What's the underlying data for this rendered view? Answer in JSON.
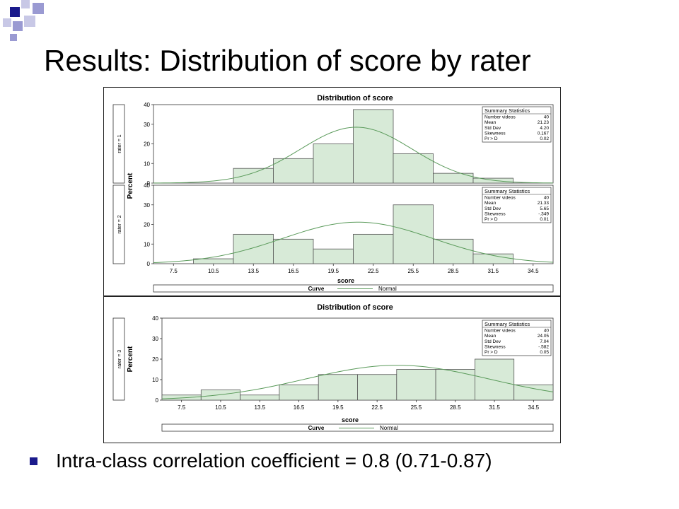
{
  "slide": {
    "title": "Results: Distribution of score by rater",
    "bullet": "Intra-class correlation coefficient = 0.8 (0.71-0.87)",
    "accent_colors": [
      "#1a1a8c",
      "#9a9ad2",
      "#c8c8e6"
    ]
  },
  "figures": [
    {
      "title": "Distribution of score",
      "ylabel": "Percent",
      "xlabel": "score",
      "legend": {
        "label": "Curve",
        "entry": "Normal"
      },
      "stats_header": "Summary Statistics",
      "xticks": [
        "7.5",
        "10.5",
        "13.5",
        "16.5",
        "19.5",
        "22.5",
        "25.5",
        "28.5",
        "31.5",
        "34.5"
      ],
      "yticks": [
        "0",
        "10",
        "20",
        "30",
        "40"
      ],
      "panels": [
        {
          "group_label": "rater = 1",
          "stats": [
            {
              "label": "Number videos",
              "value": "40"
            },
            {
              "label": "Mean",
              "value": "21.23"
            },
            {
              "label": "Std Dev",
              "value": "4.20"
            },
            {
              "label": "Skewness",
              "value": "0.167"
            },
            {
              "label": "Pr > D",
              "value": "0.02"
            }
          ]
        },
        {
          "group_label": "rater = 2",
          "stats": [
            {
              "label": "Number videos",
              "value": "40"
            },
            {
              "label": "Mean",
              "value": "21.33"
            },
            {
              "label": "Std Dev",
              "value": "5.65"
            },
            {
              "label": "Skewness",
              "value": "-.349"
            },
            {
              "label": "Pr > D",
              "value": "0.01"
            }
          ]
        }
      ]
    },
    {
      "title": "Distribution of score",
      "ylabel": "Percent",
      "xlabel": "score",
      "legend": {
        "label": "Curve",
        "entry": "Normal"
      },
      "stats_header": "Summary Statistics",
      "xticks": [
        "7.5",
        "10.5",
        "13.5",
        "16.5",
        "19.5",
        "22.5",
        "25.5",
        "28.5",
        "31.5",
        "34.5"
      ],
      "yticks": [
        "0",
        "10",
        "20",
        "30",
        "40"
      ],
      "panels": [
        {
          "group_label": "rater = 3",
          "stats": [
            {
              "label": "Number videos",
              "value": "40"
            },
            {
              "label": "Mean",
              "value": "24.05"
            },
            {
              "label": "Std Dev",
              "value": "7.04"
            },
            {
              "label": "Skewness",
              "value": "-.582"
            },
            {
              "label": "Pr > D",
              "value": "0.05"
            }
          ]
        }
      ]
    }
  ],
  "chart_data": [
    {
      "type": "bar",
      "title": "Distribution of score",
      "panel": "rater = 1",
      "xlabel": "score",
      "ylabel": "Percent",
      "ylim": [
        0,
        40
      ],
      "xlim": [
        6,
        36
      ],
      "bin_width": 3,
      "bin_centers": [
        7.5,
        10.5,
        13.5,
        16.5,
        19.5,
        22.5,
        25.5,
        28.5,
        31.5,
        34.5
      ],
      "values": [
        0,
        0,
        7.5,
        12.5,
        20,
        37.5,
        15,
        5,
        2.5,
        0
      ],
      "normal_curve": {
        "mean": 21.23,
        "sd": 4.2
      },
      "legend": "bottom"
    },
    {
      "type": "bar",
      "title": "Distribution of score",
      "panel": "rater = 2",
      "xlabel": "score",
      "ylabel": "Percent",
      "ylim": [
        0,
        40
      ],
      "xlim": [
        6,
        36
      ],
      "bin_width": 3,
      "bin_centers": [
        7.5,
        10.5,
        13.5,
        16.5,
        19.5,
        22.5,
        25.5,
        28.5,
        31.5,
        34.5
      ],
      "values": [
        0,
        2.5,
        15,
        12.5,
        7.5,
        15,
        30,
        12.5,
        5,
        0
      ],
      "normal_curve": {
        "mean": 21.33,
        "sd": 5.65
      },
      "legend": "bottom"
    },
    {
      "type": "bar",
      "title": "Distribution of score",
      "panel": "rater = 3",
      "xlabel": "score",
      "ylabel": "Percent",
      "ylim": [
        0,
        40
      ],
      "xlim": [
        6,
        36
      ],
      "bin_width": 3,
      "bin_centers": [
        7.5,
        10.5,
        13.5,
        16.5,
        19.5,
        22.5,
        25.5,
        28.5,
        31.5,
        34.5
      ],
      "values": [
        2.5,
        5,
        2.5,
        7.5,
        12.5,
        12.5,
        15,
        15,
        20,
        7.5
      ],
      "normal_curve": {
        "mean": 24.05,
        "sd": 7.04
      },
      "legend": "bottom"
    }
  ]
}
